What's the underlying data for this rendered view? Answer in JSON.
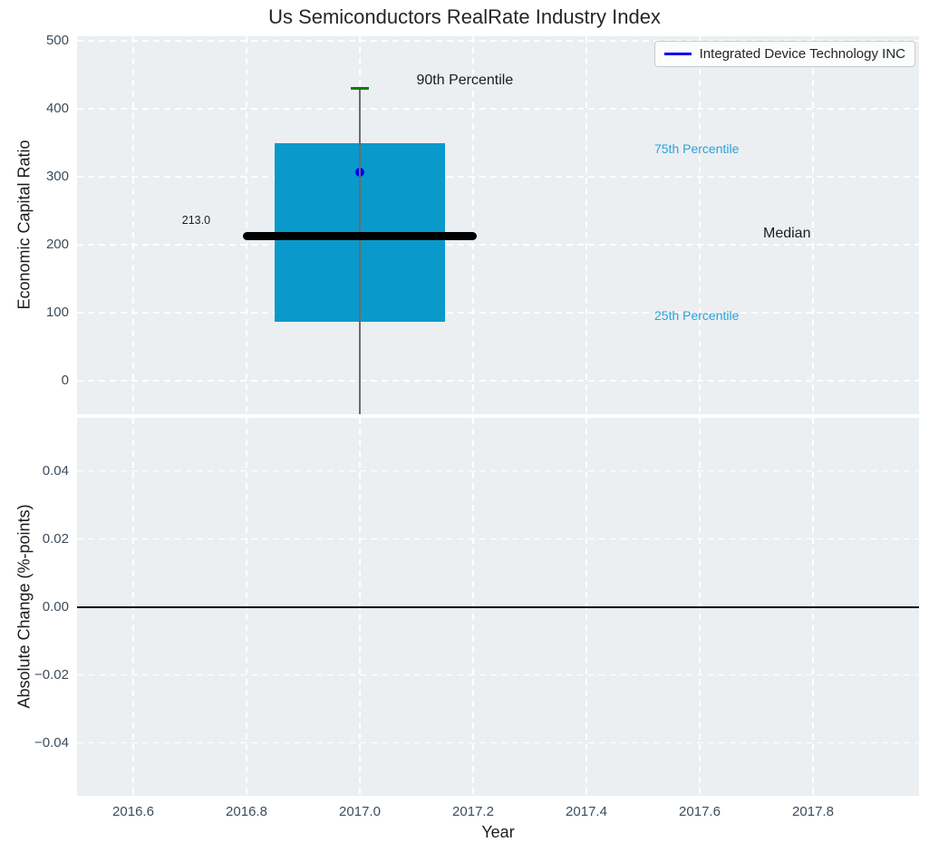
{
  "title": "Us Semiconductors RealRate Industry Index",
  "legend": {
    "label": "Integrated Device Technology INC",
    "line_color": "#0000ee"
  },
  "colors": {
    "figure_bg": "#ffffff",
    "axes_bg": "#eceff1",
    "grid": "#ffffff",
    "box_fill": "#0a99cb",
    "whisker": "#6b6b6b",
    "cap_green": "#018001",
    "median_black": "#000000",
    "company_dot": "#0000ee",
    "percentile_label": "#2aa3da",
    "tick_label": "#3d4c5c",
    "text_dark": "#1c1c1c",
    "zero_line": "#000000"
  },
  "chart_data": [
    {
      "type": "boxplot",
      "title": "Us Semiconductors RealRate Industry Index",
      "ylabel": "Economic Capital Ratio",
      "xlabel": "Year",
      "grid": true,
      "xlim": [
        2016.5008,
        2017.9872
      ],
      "ylim": [
        -49.3,
        506.7
      ],
      "xtick_values": [
        2016.6,
        2016.8,
        2017.0,
        2017.2,
        2017.4,
        2017.6,
        2017.8
      ],
      "xtick_labels": [
        "2016.6",
        "2016.8",
        "2017.0",
        "2017.2",
        "2017.4",
        "2017.6",
        "2017.8"
      ],
      "ytick_values": [
        0,
        100,
        200,
        300,
        400,
        500
      ],
      "ytick_labels": [
        "0",
        "100",
        "200",
        "300",
        "400",
        "500"
      ],
      "box": {
        "x": 2017.0,
        "box_halfwidth": 0.15,
        "median_halfwidth": 0.206,
        "cap_halfwidth": 0.016,
        "p90": 430,
        "p75": 350,
        "median": 213.0,
        "median_label": "213.0",
        "p25": 87,
        "whisker_low": -50,
        "company_value": 307
      },
      "annotations": [
        {
          "text": "90th Percentile",
          "x": 2017.1,
          "y": 441,
          "color_key": "text_dark",
          "size": 16
        },
        {
          "text": "75th Percentile",
          "x": 2017.52,
          "y": 341,
          "color_key": "percentile_label",
          "size": 14
        },
        {
          "text": "Median",
          "x": 2017.712,
          "y": 216,
          "color_key": "text_dark",
          "size": 16
        },
        {
          "text": "25th Percentile",
          "x": 2017.52,
          "y": 96,
          "color_key": "percentile_label",
          "size": 14
        },
        {
          "text": "213.0",
          "x": 2016.686,
          "y": 236,
          "color_key": "text_dark",
          "size": 12.5
        }
      ]
    },
    {
      "type": "line",
      "ylabel": "Absolute Change (%-points)",
      "xlabel": "Year",
      "grid": true,
      "xlim": [
        2016.5008,
        2017.9872
      ],
      "ylim": [
        -0.0556,
        0.0556
      ],
      "xtick_values": [
        2016.6,
        2016.8,
        2017.0,
        2017.2,
        2017.4,
        2017.6,
        2017.8
      ],
      "xtick_labels": [
        "2016.6",
        "2016.8",
        "2017.0",
        "2017.2",
        "2017.4",
        "2017.6",
        "2017.8"
      ],
      "ytick_values": [
        0.04,
        0.02,
        0.0,
        -0.02,
        -0.04
      ],
      "ytick_labels": [
        "0.04",
        "0.02",
        "0.00",
        "−0.02",
        "−0.04"
      ],
      "zero_line": 0.0,
      "series": []
    }
  ]
}
